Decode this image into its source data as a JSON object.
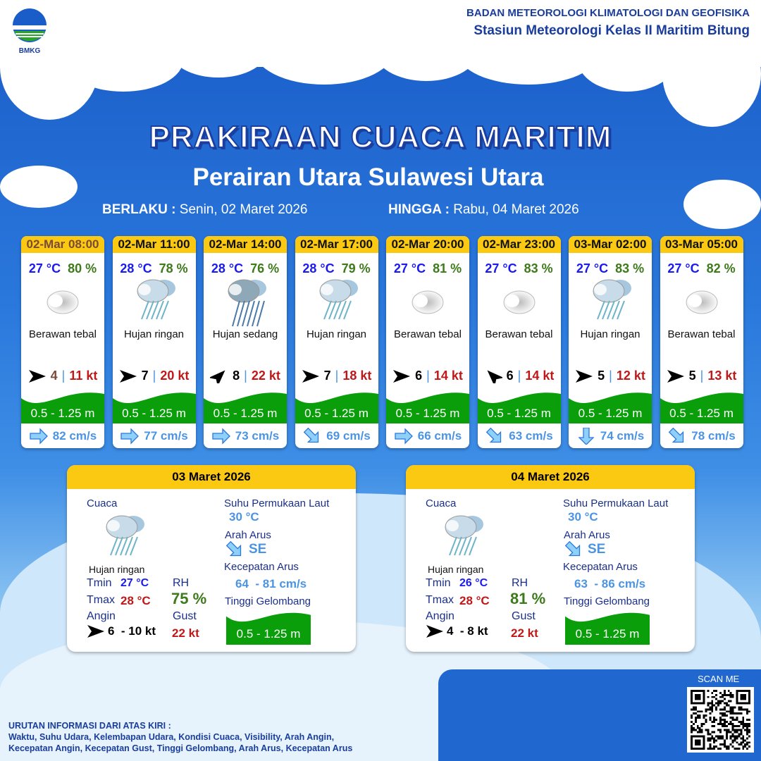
{
  "header": {
    "logo_text": "BMKG",
    "org": "BADAN METEOROLOGI KLIMATOLOGI DAN GEOFISIKA",
    "station": "Stasiun Meteorologi Kelas II Maritim Bitung"
  },
  "title": "PRAKIRAAN CUACA MARITIM",
  "subtitle": "Perairan Utara Sulawesi Utara",
  "validity": {
    "from_label": "BERLAKU :",
    "from_value": "Senin, 02 Maret 2026",
    "to_label": "HINGGA :",
    "to_value": "Rabu, 04 Maret 2026"
  },
  "forecasts": [
    {
      "time": "02-Mar 08:00",
      "temp": "27 °C",
      "rh": "80 %",
      "icon": "cloudy-icon",
      "weather": "Berawan tebal",
      "wind_dir": "E",
      "wind": "4",
      "gust": "11 kt",
      "wave": "0.5 - 1.25 m",
      "current_dir": "E",
      "current": "82 cm/s"
    },
    {
      "time": "02-Mar 11:00",
      "temp": "28 °C",
      "rh": "78 %",
      "icon": "light-rain-icon",
      "weather": "Hujan ringan",
      "wind_dir": "E",
      "wind": "7",
      "gust": "20 kt",
      "wave": "0.5 - 1.25 m",
      "current_dir": "E",
      "current": "77 cm/s"
    },
    {
      "time": "02-Mar 14:00",
      "temp": "28 °C",
      "rh": "76 %",
      "icon": "moderate-rain-icon",
      "weather": "Hujan sedang",
      "wind_dir": "NE",
      "wind": "8",
      "gust": "22 kt",
      "wave": "0.5 - 1.25 m",
      "current_dir": "E",
      "current": "73 cm/s"
    },
    {
      "time": "02-Mar 17:00",
      "temp": "28 °C",
      "rh": "79 %",
      "icon": "light-rain-icon",
      "weather": "Hujan ringan",
      "wind_dir": "E",
      "wind": "7",
      "gust": "18 kt",
      "wave": "0.5 - 1.25 m",
      "current_dir": "SE",
      "current": "69 cm/s"
    },
    {
      "time": "02-Mar 20:00",
      "temp": "27 °C",
      "rh": "81 %",
      "icon": "cloudy-icon",
      "weather": "Berawan tebal",
      "wind_dir": "E",
      "wind": "6",
      "gust": "14 kt",
      "wave": "0.5 - 1.25 m",
      "current_dir": "E",
      "current": "66 cm/s"
    },
    {
      "time": "02-Mar 23:00",
      "temp": "27 °C",
      "rh": "83 %",
      "icon": "cloudy-icon",
      "weather": "Berawan tebal",
      "wind_dir": "NW",
      "wind": "6",
      "gust": "14 kt",
      "wave": "0.5 - 1.25 m",
      "current_dir": "SE",
      "current": "63 cm/s"
    },
    {
      "time": "03-Mar 02:00",
      "temp": "27 °C",
      "rh": "83 %",
      "icon": "light-rain-icon",
      "weather": "Hujan ringan",
      "wind_dir": "E",
      "wind": "5",
      "gust": "12 kt",
      "wave": "0.5 - 1.25 m",
      "current_dir": "S",
      "current": "74 cm/s"
    },
    {
      "time": "03-Mar 05:00",
      "temp": "27 °C",
      "rh": "82 %",
      "icon": "cloudy-icon",
      "weather": "Berawan tebal",
      "wind_dir": "E",
      "wind": "5",
      "gust": "13 kt",
      "wave": "0.5 - 1.25 m",
      "current_dir": "SE",
      "current": "78 cm/s"
    }
  ],
  "daily": [
    {
      "date": "03 Maret 2026",
      "weather_label": "Cuaca",
      "icon": "light-rain-icon",
      "weather": "Hujan ringan",
      "tmin_label": "Tmin",
      "tmin": "27 °C",
      "tmax_label": "Tmax",
      "tmax": "28 °C",
      "rh_label": "RH",
      "rh": "75 %",
      "wind_label": "Angin",
      "wind_dir": "E",
      "wind": "6  - 10 kt",
      "gust_label": "Gust",
      "gust": "22 kt",
      "sst_label": "Suhu Permukaan Laut",
      "sst": "30 °C",
      "current_dir_label": "Arah Arus",
      "current_dir": "SE",
      "current_speed_label": "Kecepatan Arus",
      "current_speed": "64  - 81 cm/s",
      "wave_label": "Tinggi Gelombang",
      "wave": "0.5 - 1.25 m"
    },
    {
      "date": "04 Maret 2026",
      "weather_label": "Cuaca",
      "icon": "light-rain-icon",
      "weather": "Hujan ringan",
      "tmin_label": "Tmin",
      "tmin": "26 °C",
      "tmax_label": "Tmax",
      "tmax": "28 °C",
      "rh_label": "RH",
      "rh": "81 %",
      "wind_label": "Angin",
      "wind_dir": "E",
      "wind": "4  - 8 kt",
      "gust_label": "Gust",
      "gust": "22 kt",
      "sst_label": "Suhu Permukaan Laut",
      "sst": "30 °C",
      "current_dir_label": "Arah Arus",
      "current_dir": "SE",
      "current_speed_label": "Kecepatan Arus",
      "current_speed": "63  - 86 cm/s",
      "wave_label": "Tinggi Gelombang",
      "wave": "0.5 - 1.25 m"
    }
  ],
  "footer": {
    "legend_title": "URUTAN INFORMASI DARI ATAS KIRI :",
    "legend_line1": "Waktu, Suhu Udara, Kelembapan Udara, Kondisi Cuaca, Visibility, Arah Angin,",
    "legend_line2": "Kecepatan Angin, Kecepatan Gust, Tinggi Gelombang, Arah Arus, Kecepatan Arus",
    "scan_label": "SCAN ME"
  },
  "colors": {
    "header_yellow": "#fbc911",
    "wave_green": "#0a9e0a",
    "temp_blue": "#1a1af0",
    "rh_green": "#3d7a1a",
    "gust_red": "#c01818",
    "current_blue": "#4b94e4"
  }
}
